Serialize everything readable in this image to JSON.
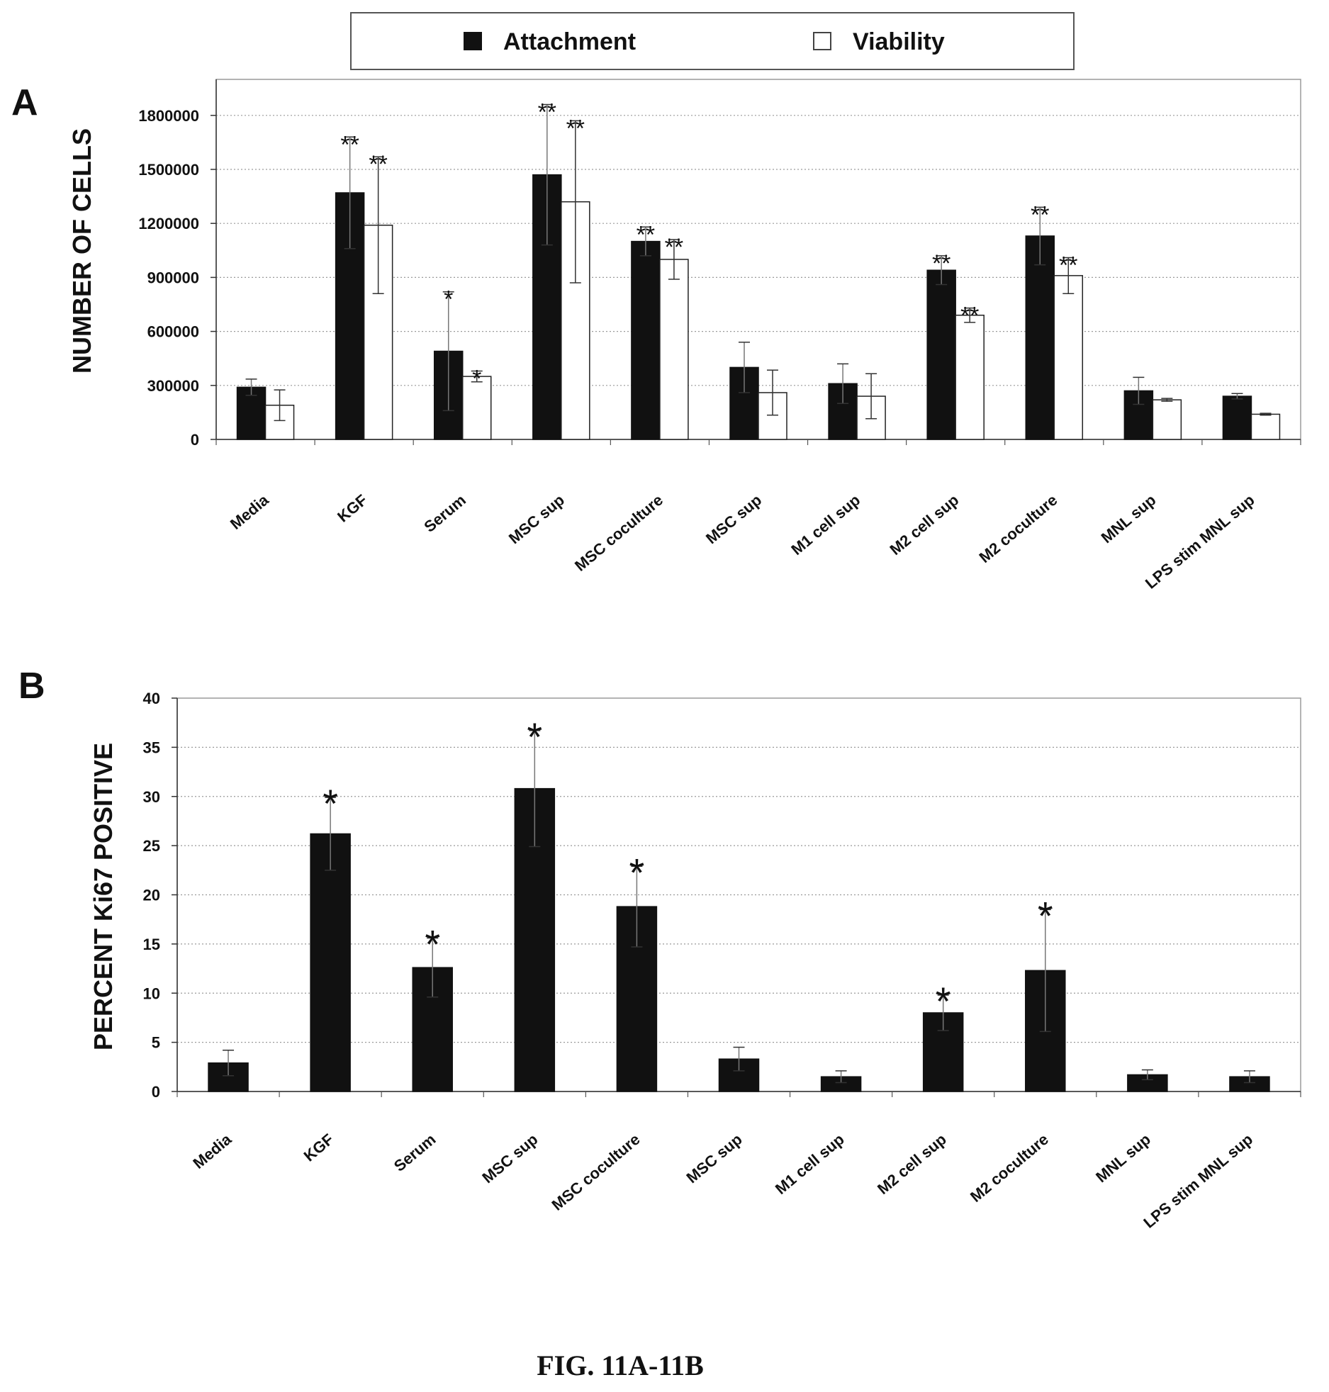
{
  "figure_caption": "FIG. 11A-11B",
  "legend": [
    {
      "label": "Attachment",
      "swatch": "filled"
    },
    {
      "label": "Viability",
      "swatch": "open"
    }
  ],
  "colors": {
    "attachment": "#111111",
    "viability": "#ffffff",
    "outline": "#222222",
    "grid": "#9a9a9a"
  },
  "chart_data": [
    {
      "panel": "A",
      "type": "bar",
      "ylabel": "NUMBER OF CELLS",
      "ylim": [
        0,
        2000000
      ],
      "yticks": [
        0,
        300000,
        600000,
        900000,
        1200000,
        1500000,
        1800000
      ],
      "ytick_labels": [
        "0",
        "300000",
        "600000",
        "900000",
        "1200000",
        "1500000",
        "1800000"
      ],
      "grid": "horizontal dotted",
      "categories": [
        "Media",
        "KGF",
        "Serum",
        "MSC sup",
        "MSC coculture",
        "MSC sup",
        "M1 cell sup",
        "M2 cell sup",
        "M2 coculture",
        "MNL sup",
        "LPS stim MNL sup"
      ],
      "series": [
        {
          "name": "Attachment",
          "values": [
            290000,
            1370000,
            490000,
            1470000,
            1100000,
            400000,
            310000,
            940000,
            1130000,
            270000,
            240000
          ],
          "errors": [
            45000,
            310000,
            330000,
            390000,
            80000,
            140000,
            110000,
            80000,
            160000,
            75000,
            15000
          ],
          "annotations": [
            "",
            "**",
            "*",
            "**",
            "**",
            "",
            "",
            "**",
            "**",
            "",
            ""
          ]
        },
        {
          "name": "Viability",
          "values": [
            190000,
            1190000,
            350000,
            1320000,
            1000000,
            260000,
            240000,
            690000,
            910000,
            220000,
            140000
          ],
          "errors": [
            85000,
            380000,
            30000,
            450000,
            110000,
            125000,
            125000,
            40000,
            100000,
            8000,
            5000
          ],
          "annotations": [
            "",
            "**",
            "*",
            "**",
            "**",
            "",
            "",
            "**",
            "**",
            "",
            ""
          ]
        }
      ]
    },
    {
      "panel": "B",
      "type": "bar",
      "ylabel": "PERCENT Ki67 POSITIVE",
      "ylim": [
        0,
        40
      ],
      "yticks": [
        0,
        5,
        10,
        15,
        20,
        25,
        30,
        35,
        40
      ],
      "ytick_labels": [
        "0",
        "5",
        "10",
        "15",
        "20",
        "25",
        "30",
        "35",
        "40"
      ],
      "grid": "horizontal dotted",
      "categories": [
        "Media",
        "KGF",
        "Serum",
        "MSC sup",
        "MSC coculture",
        "MSC sup",
        "M1 cell sup",
        "M2 cell sup",
        "M2 coculture",
        "MNL sup",
        "LPS stim MNL sup"
      ],
      "series": [
        {
          "values": [
            2.9,
            26.2,
            12.6,
            30.8,
            18.8,
            3.3,
            1.5,
            8.0,
            12.3,
            1.7,
            1.5
          ],
          "errors": [
            1.3,
            3.7,
            3.0,
            5.9,
            4.1,
            1.2,
            0.6,
            1.8,
            6.2,
            0.5,
            0.6
          ],
          "annotations": [
            "",
            "*",
            "*",
            "*",
            "*",
            "",
            "",
            "*",
            "*",
            "",
            ""
          ]
        }
      ]
    }
  ]
}
